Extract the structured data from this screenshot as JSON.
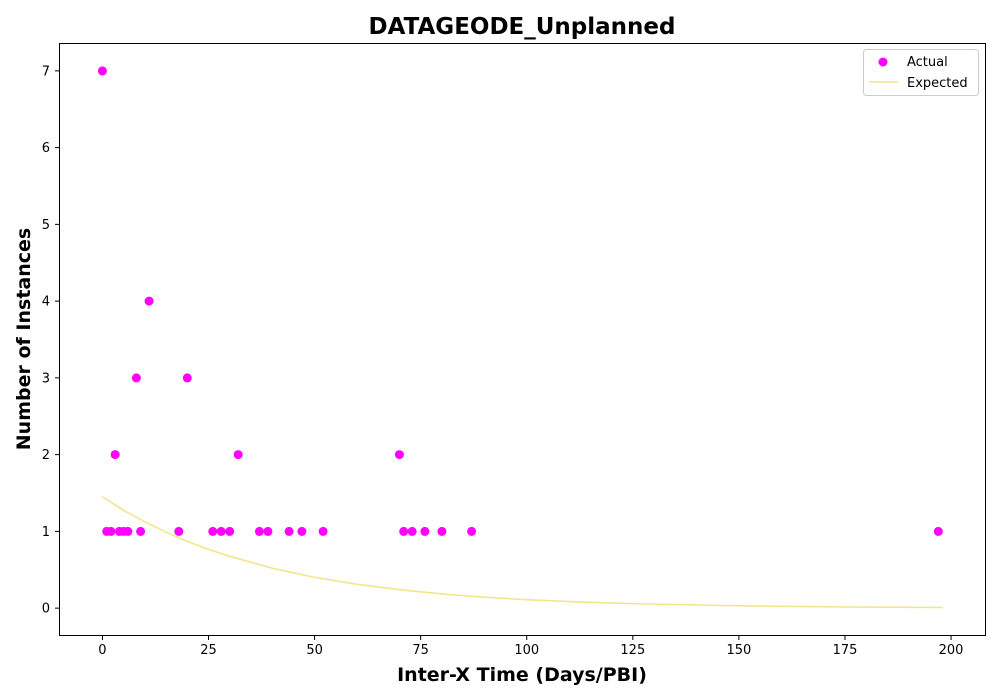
{
  "chart_data": {
    "type": "scatter",
    "title": "DATAGEODE_Unplanned",
    "xlabel": "Inter-X Time (Days/PBI)",
    "ylabel": "Number of Instances",
    "xlim": [
      -10,
      208
    ],
    "ylim": [
      -0.35,
      7.35
    ],
    "xticks": [
      0,
      25,
      50,
      75,
      100,
      125,
      150,
      175,
      200
    ],
    "yticks": [
      0,
      1,
      2,
      3,
      4,
      5,
      6,
      7
    ],
    "grid": false,
    "legend_position": "top-right",
    "series": [
      {
        "name": "Actual",
        "kind": "scatter",
        "color": "#ff00ff",
        "points": [
          [
            0,
            7
          ],
          [
            1,
            1
          ],
          [
            2,
            1
          ],
          [
            3,
            2
          ],
          [
            4,
            1
          ],
          [
            5,
            1
          ],
          [
            6,
            1
          ],
          [
            8,
            3
          ],
          [
            9,
            1
          ],
          [
            11,
            4
          ],
          [
            18,
            1
          ],
          [
            20,
            3
          ],
          [
            26,
            1
          ],
          [
            28,
            1
          ],
          [
            30,
            1
          ],
          [
            32,
            2
          ],
          [
            37,
            1
          ],
          [
            39,
            1
          ],
          [
            44,
            1
          ],
          [
            47,
            1
          ],
          [
            52,
            1
          ],
          [
            70,
            2
          ],
          [
            71,
            1
          ],
          [
            73,
            1
          ],
          [
            76,
            1
          ],
          [
            80,
            1
          ],
          [
            87,
            1
          ],
          [
            197,
            1
          ]
        ]
      },
      {
        "name": "Expected",
        "kind": "line",
        "color": "#f0e68c",
        "points": [
          [
            0,
            1.45
          ],
          [
            5,
            1.275
          ],
          [
            10,
            1.125
          ],
          [
            15,
            0.99
          ],
          [
            20,
            0.87
          ],
          [
            25,
            0.765
          ],
          [
            30,
            0.675
          ],
          [
            40,
            0.52
          ],
          [
            50,
            0.4
          ],
          [
            60,
            0.31
          ],
          [
            70,
            0.24
          ],
          [
            80,
            0.185
          ],
          [
            90,
            0.142
          ],
          [
            100,
            0.11
          ],
          [
            110,
            0.085
          ],
          [
            125,
            0.058
          ],
          [
            150,
            0.03
          ],
          [
            175,
            0.015
          ],
          [
            198,
            0.008
          ]
        ]
      }
    ]
  }
}
